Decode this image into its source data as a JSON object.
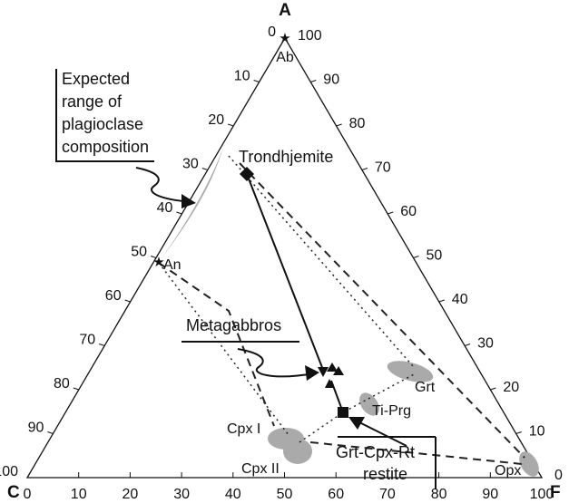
{
  "vertices": {
    "top": "A",
    "left": "C",
    "right": "F"
  },
  "left_axis_ticks": [
    0,
    10,
    20,
    30,
    40,
    50,
    60,
    70,
    80,
    90,
    100
  ],
  "right_axis_ticks": [
    100,
    90,
    80,
    70,
    60,
    50,
    40,
    30,
    20,
    10,
    0
  ],
  "bottom_axis_ticks": [
    0,
    10,
    20,
    30,
    40,
    50,
    60,
    70,
    80,
    90,
    100
  ],
  "labels": {
    "ab": "Ab",
    "an": "An",
    "opx": "Opx",
    "grt": "Grt",
    "ti_prg": "Ti-Prg",
    "cpx_1": "Cpx I",
    "cpx_2": "Cpx II",
    "trondhjemite": "Trondhjemite"
  },
  "callouts": {
    "plagioclase": [
      "Expected",
      "range of",
      "plagioclase",
      "composition"
    ],
    "metagabbros": "Metagabbros",
    "restite": [
      "Grt-Cpx-Rt",
      "restite"
    ]
  }
}
